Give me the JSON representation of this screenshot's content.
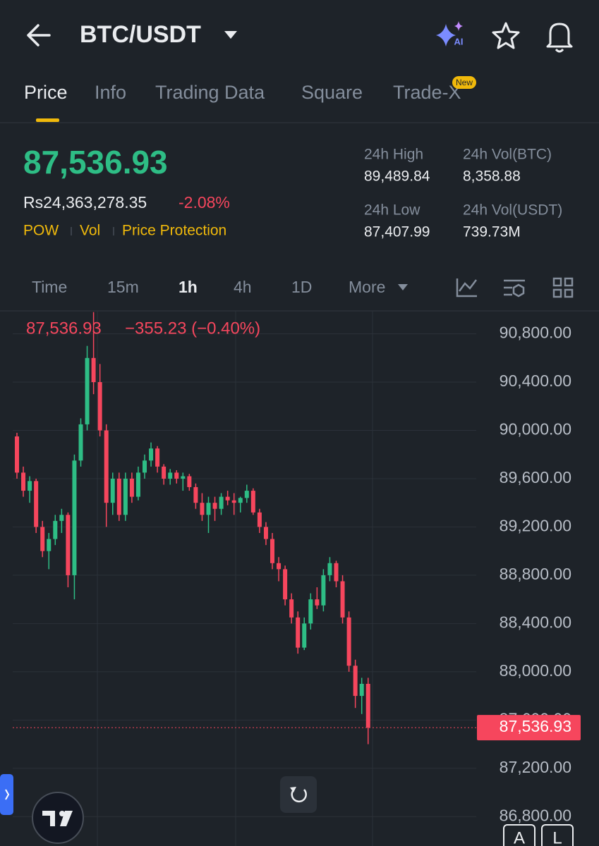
{
  "header": {
    "title": "BTC/USDT",
    "ai": "AI"
  },
  "tabs": {
    "items": [
      "Price",
      "Info",
      "Trading Data",
      "Square",
      "Trade-X"
    ],
    "badge": "New"
  },
  "ticker": {
    "price": "87,536.93",
    "fiat": "Rs24,363,278.35",
    "change": "-2.08%",
    "tags": [
      "POW",
      "Vol",
      "Price Protection"
    ],
    "stats": [
      {
        "label": "24h High",
        "value": "89,489.84"
      },
      {
        "label": "24h Vol(BTC)",
        "value": "8,358.88"
      },
      {
        "label": "24h Low",
        "value": "87,407.99"
      },
      {
        "label": "24h Vol(USDT)",
        "value": "739.73M"
      }
    ]
  },
  "intervals": {
    "items": [
      "Time",
      "15m",
      "1h",
      "4h",
      "1D",
      "More"
    ]
  },
  "chart_data": {
    "type": "candlestick",
    "legend": {
      "price": "87,536.93",
      "change": "−355.23 (−0.40%)"
    },
    "last_label": "87,536.93",
    "up_color": "#2ebd85",
    "down_color": "#f6465d",
    "grid": true,
    "ylim": [
      86790,
      90990
    ],
    "yticks": [
      {
        "value": 90800,
        "label": "90,800.00"
      },
      {
        "value": 90400,
        "label": "90,400.00"
      },
      {
        "value": 90000,
        "label": "90,000.00"
      },
      {
        "value": 89600,
        "label": "89,600.00"
      },
      {
        "value": 89200,
        "label": "89,200.00"
      },
      {
        "value": 88800,
        "label": "88,800.00"
      },
      {
        "value": 88400,
        "label": "88,400.00"
      },
      {
        "value": 88000,
        "label": "88,000.00"
      },
      {
        "value": 87600,
        "label": "87,600.00"
      },
      {
        "value": 87200,
        "label": "87,200.00"
      },
      {
        "value": 86800,
        "label": "86,800.00"
      }
    ],
    "ohlc": [
      [
        89950,
        89980,
        89600,
        89650
      ],
      [
        89650,
        89700,
        89450,
        89500
      ],
      [
        89500,
        89620,
        89400,
        89580
      ],
      [
        89580,
        89600,
        89150,
        89200
      ],
      [
        89200,
        89250,
        88950,
        89000
      ],
      [
        89000,
        89150,
        88850,
        89100
      ],
      [
        89100,
        89300,
        89050,
        89250
      ],
      [
        89250,
        89350,
        89150,
        89300
      ],
      [
        89300,
        89320,
        88700,
        88800
      ],
      [
        88800,
        89800,
        88600,
        89750
      ],
      [
        89750,
        90100,
        89700,
        90050
      ],
      [
        90050,
        90700,
        90000,
        90600
      ],
      [
        90600,
        90980,
        90300,
        90400
      ],
      [
        90400,
        90550,
        89950,
        90000
      ],
      [
        90000,
        90050,
        89200,
        89400
      ],
      [
        89400,
        89650,
        89300,
        89600
      ],
      [
        89600,
        89650,
        89250,
        89300
      ],
      [
        89300,
        89650,
        89250,
        89600
      ],
      [
        89600,
        89650,
        89400,
        89450
      ],
      [
        89450,
        89700,
        89420,
        89650
      ],
      [
        89650,
        89800,
        89600,
        89750
      ],
      [
        89750,
        89900,
        89700,
        89850
      ],
      [
        89850,
        89870,
        89650,
        89700
      ],
      [
        89700,
        89720,
        89550,
        89600
      ],
      [
        89600,
        89680,
        89550,
        89650
      ],
      [
        89650,
        89670,
        89560,
        89600
      ],
      [
        89600,
        89650,
        89500,
        89620
      ],
      [
        89620,
        89640,
        89500,
        89530
      ],
      [
        89530,
        89560,
        89350,
        89400
      ],
      [
        89400,
        89480,
        89250,
        89300
      ],
      [
        89300,
        89450,
        89150,
        89400
      ],
      [
        89400,
        89450,
        89250,
        89350
      ],
      [
        89350,
        89480,
        89300,
        89450
      ],
      [
        89450,
        89500,
        89380,
        89420
      ],
      [
        89420,
        89480,
        89300,
        89400
      ],
      [
        89400,
        89450,
        89320,
        89440
      ],
      [
        89440,
        89550,
        89400,
        89500
      ],
      [
        89500,
        89520,
        89300,
        89320
      ],
      [
        89320,
        89350,
        89150,
        89200
      ],
      [
        89200,
        89240,
        89050,
        89100
      ],
      [
        89100,
        89150,
        88850,
        88900
      ],
      [
        88900,
        88950,
        88750,
        88850
      ],
      [
        88850,
        88880,
        88550,
        88600
      ],
      [
        88600,
        88650,
        88400,
        88450
      ],
      [
        88450,
        88500,
        88150,
        88200
      ],
      [
        88200,
        88450,
        88180,
        88400
      ],
      [
        88400,
        88650,
        88350,
        88600
      ],
      [
        88600,
        88700,
        88520,
        88550
      ],
      [
        88550,
        88850,
        88500,
        88800
      ],
      [
        88800,
        88950,
        88750,
        88900
      ],
      [
        88900,
        88920,
        88700,
        88750
      ],
      [
        88750,
        88800,
        88400,
        88450
      ],
      [
        88450,
        88500,
        88000,
        88050
      ],
      [
        88050,
        88100,
        87700,
        87800
      ],
      [
        87800,
        87950,
        87650,
        87900
      ],
      [
        87900,
        87950,
        87400,
        87536.93
      ]
    ]
  },
  "buttons": {
    "items": [
      "A",
      "L"
    ]
  }
}
